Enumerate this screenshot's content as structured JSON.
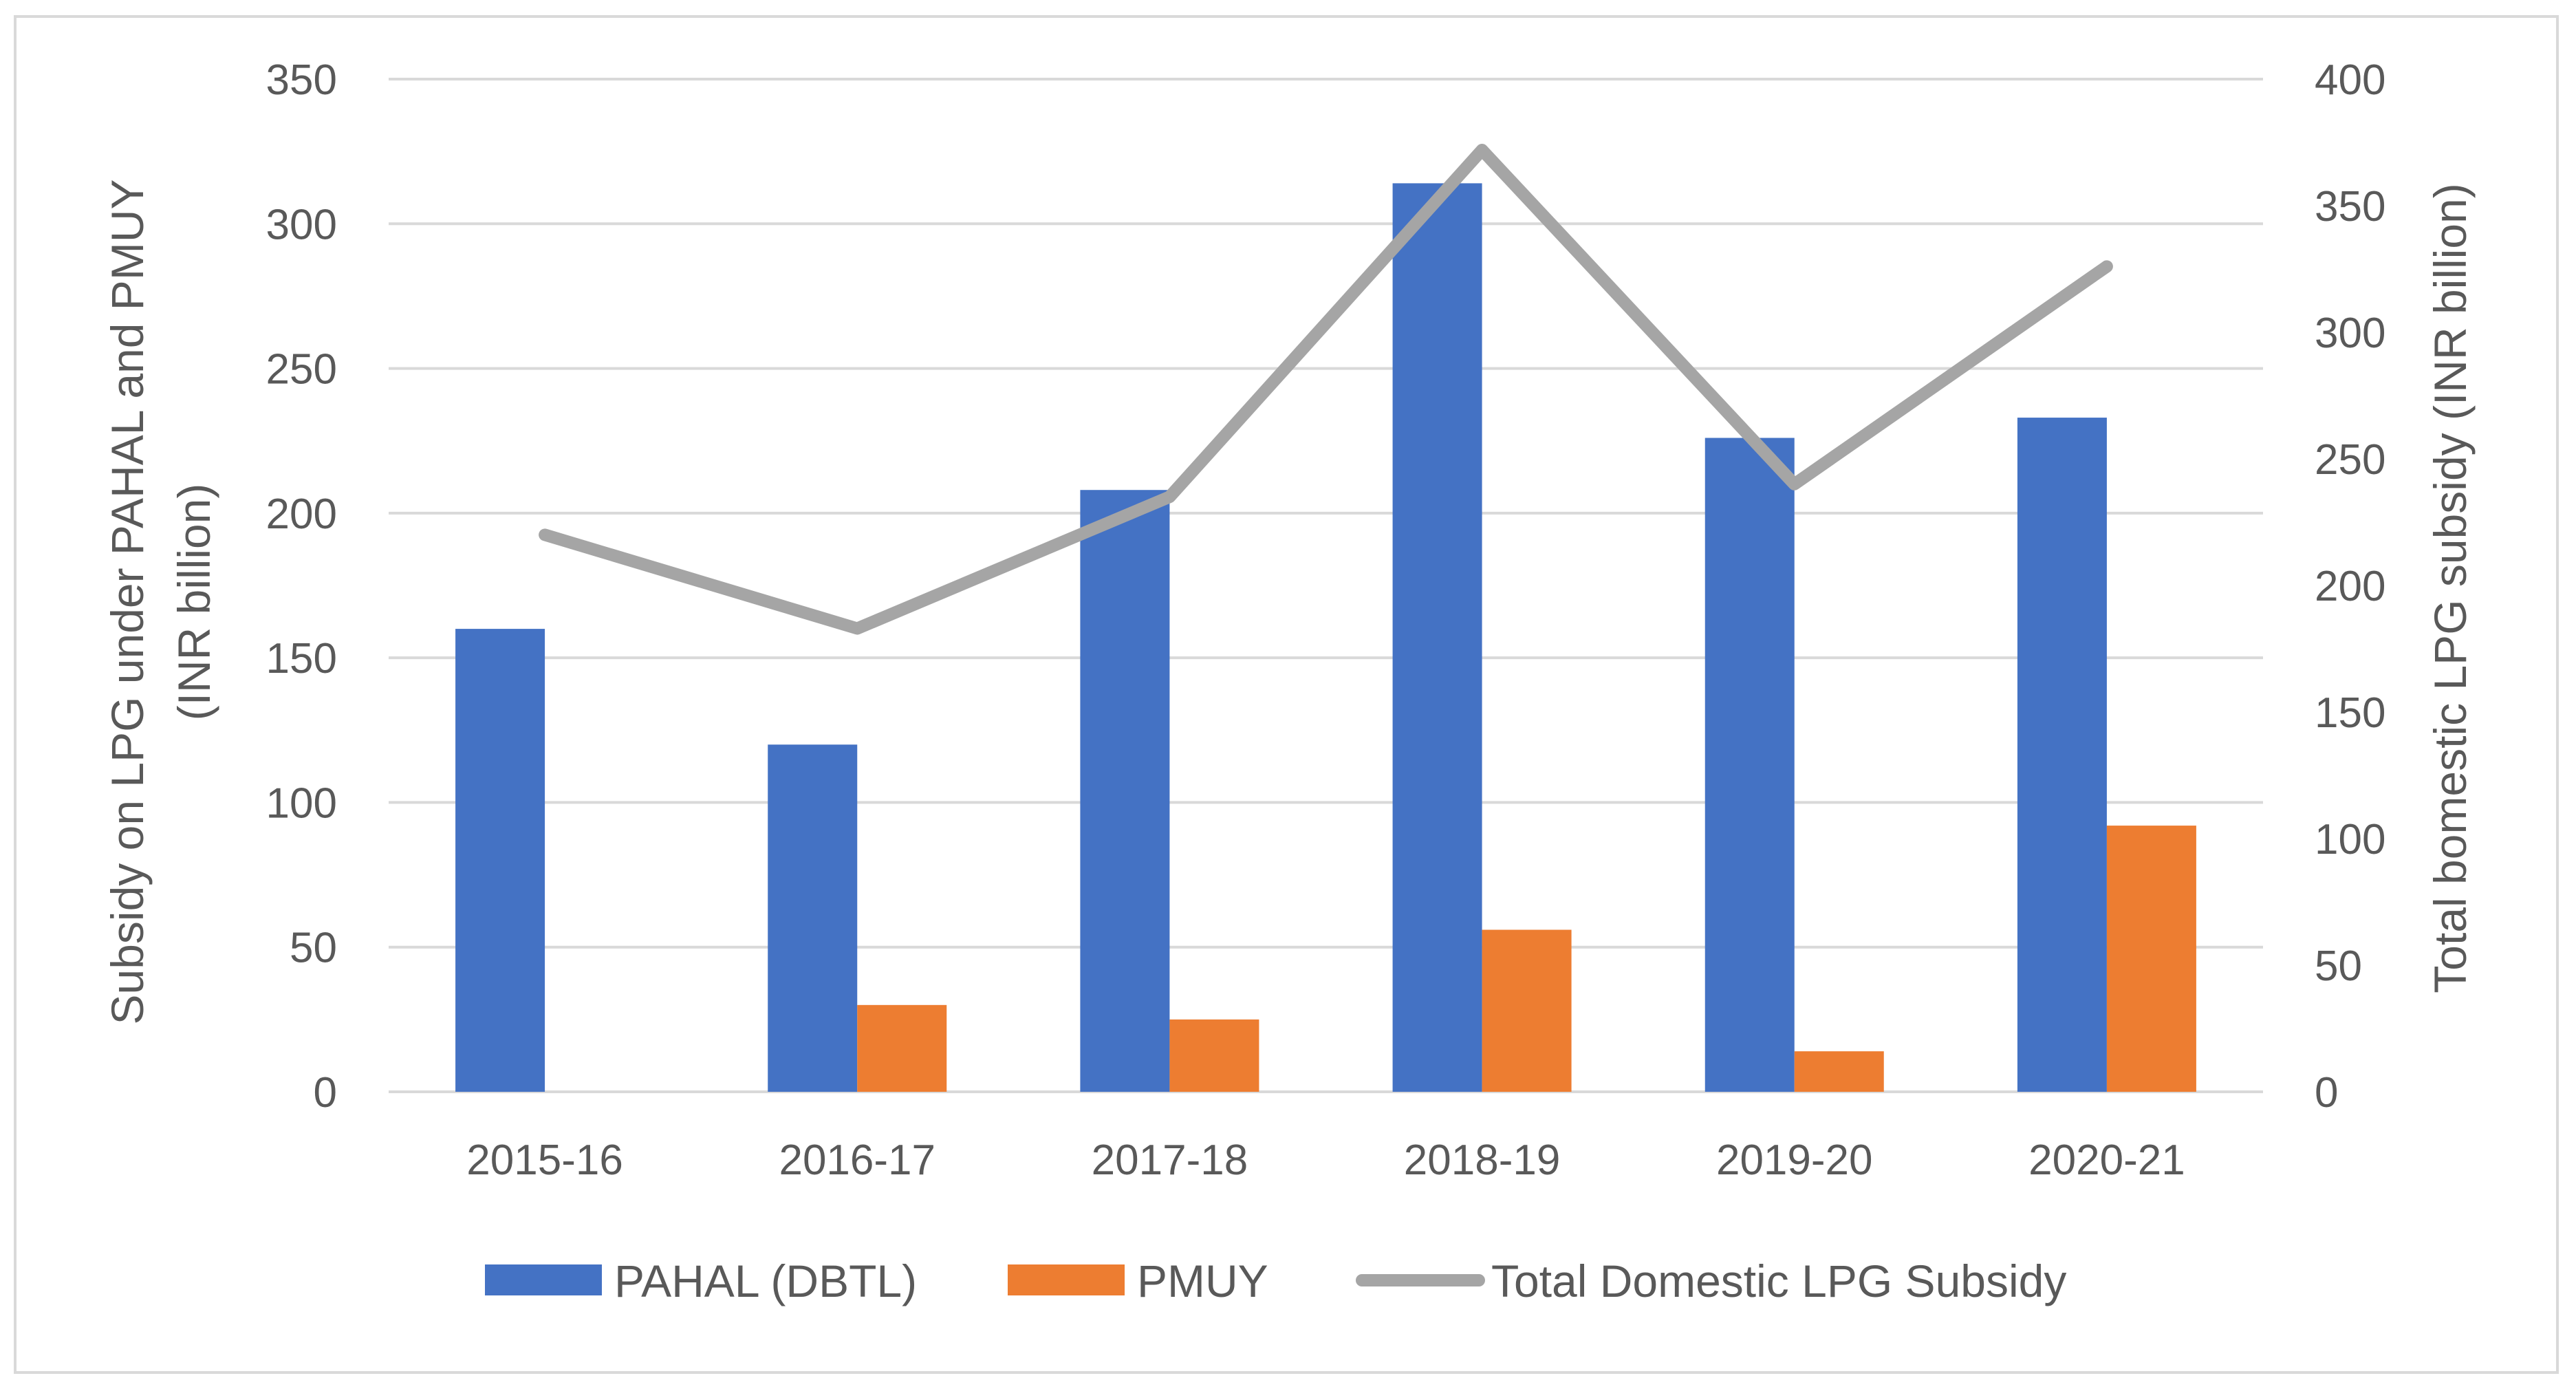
{
  "chart_data": {
    "type": "bar",
    "categories": [
      "2015-16",
      "2016-17",
      "2017-18",
      "2018-19",
      "2019-20",
      "2020-21"
    ],
    "series": [
      {
        "name": "PAHAL (DBTL)",
        "type": "bar",
        "axis": "left",
        "color": "#4472c4",
        "values": [
          160,
          120,
          208,
          314,
          226,
          233
        ]
      },
      {
        "name": "PMUY",
        "type": "bar",
        "axis": "left",
        "color": "#ed7d31",
        "values": [
          0,
          30,
          25,
          56,
          14,
          92
        ]
      },
      {
        "name": "Total Domestic LPG Subsidy",
        "type": "line",
        "axis": "right",
        "color": "#a5a5a5",
        "values": [
          220,
          183,
          235,
          372,
          240,
          326
        ]
      }
    ],
    "y_left": {
      "label_line1": "Subsidy on LPG  under PAHAL and  PMUY",
      "label_line2": "(INR billion)",
      "ylim": [
        0,
        350
      ],
      "ticks": [
        "0",
        "50",
        "100",
        "150",
        "200",
        "250",
        "300",
        "350"
      ]
    },
    "y_right": {
      "label": "Total bomestic LPG subsidy  (INR billion)",
      "ylim": [
        0,
        400
      ],
      "ticks": [
        "0",
        "50",
        "100",
        "150",
        "200",
        "250",
        "300",
        "350",
        "400"
      ]
    },
    "grid": true,
    "legend": "bottom",
    "title": ""
  }
}
